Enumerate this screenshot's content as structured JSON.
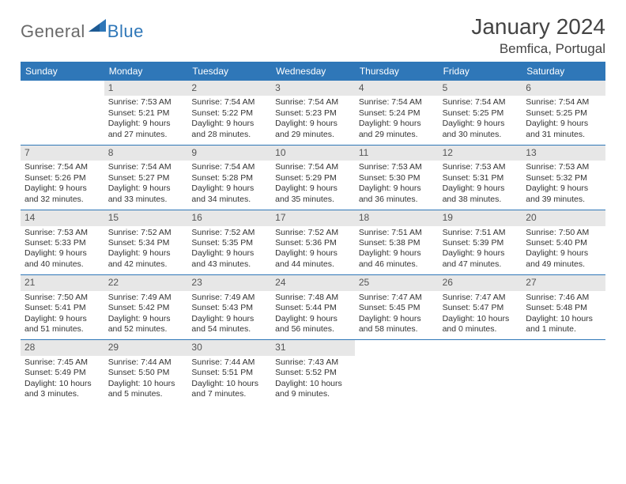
{
  "brand": {
    "part1": "General",
    "part2": "Blue"
  },
  "header": {
    "month": "January 2024",
    "location": "Bemfica, Portugal"
  },
  "colors": {
    "accent": "#2f77b8",
    "daynum_bg": "#e7e7e7",
    "text": "#333333",
    "logo_gray": "#6a6a6a"
  },
  "weekdays": [
    "Sunday",
    "Monday",
    "Tuesday",
    "Wednesday",
    "Thursday",
    "Friday",
    "Saturday"
  ],
  "first_weekday_index": 1,
  "days": [
    {
      "n": 1,
      "sr": "7:53 AM",
      "ss": "5:21 PM",
      "dl": "9 hours and 27 minutes."
    },
    {
      "n": 2,
      "sr": "7:54 AM",
      "ss": "5:22 PM",
      "dl": "9 hours and 28 minutes."
    },
    {
      "n": 3,
      "sr": "7:54 AM",
      "ss": "5:23 PM",
      "dl": "9 hours and 29 minutes."
    },
    {
      "n": 4,
      "sr": "7:54 AM",
      "ss": "5:24 PM",
      "dl": "9 hours and 29 minutes."
    },
    {
      "n": 5,
      "sr": "7:54 AM",
      "ss": "5:25 PM",
      "dl": "9 hours and 30 minutes."
    },
    {
      "n": 6,
      "sr": "7:54 AM",
      "ss": "5:25 PM",
      "dl": "9 hours and 31 minutes."
    },
    {
      "n": 7,
      "sr": "7:54 AM",
      "ss": "5:26 PM",
      "dl": "9 hours and 32 minutes."
    },
    {
      "n": 8,
      "sr": "7:54 AM",
      "ss": "5:27 PM",
      "dl": "9 hours and 33 minutes."
    },
    {
      "n": 9,
      "sr": "7:54 AM",
      "ss": "5:28 PM",
      "dl": "9 hours and 34 minutes."
    },
    {
      "n": 10,
      "sr": "7:54 AM",
      "ss": "5:29 PM",
      "dl": "9 hours and 35 minutes."
    },
    {
      "n": 11,
      "sr": "7:53 AM",
      "ss": "5:30 PM",
      "dl": "9 hours and 36 minutes."
    },
    {
      "n": 12,
      "sr": "7:53 AM",
      "ss": "5:31 PM",
      "dl": "9 hours and 38 minutes."
    },
    {
      "n": 13,
      "sr": "7:53 AM",
      "ss": "5:32 PM",
      "dl": "9 hours and 39 minutes."
    },
    {
      "n": 14,
      "sr": "7:53 AM",
      "ss": "5:33 PM",
      "dl": "9 hours and 40 minutes."
    },
    {
      "n": 15,
      "sr": "7:52 AM",
      "ss": "5:34 PM",
      "dl": "9 hours and 42 minutes."
    },
    {
      "n": 16,
      "sr": "7:52 AM",
      "ss": "5:35 PM",
      "dl": "9 hours and 43 minutes."
    },
    {
      "n": 17,
      "sr": "7:52 AM",
      "ss": "5:36 PM",
      "dl": "9 hours and 44 minutes."
    },
    {
      "n": 18,
      "sr": "7:51 AM",
      "ss": "5:38 PM",
      "dl": "9 hours and 46 minutes."
    },
    {
      "n": 19,
      "sr": "7:51 AM",
      "ss": "5:39 PM",
      "dl": "9 hours and 47 minutes."
    },
    {
      "n": 20,
      "sr": "7:50 AM",
      "ss": "5:40 PM",
      "dl": "9 hours and 49 minutes."
    },
    {
      "n": 21,
      "sr": "7:50 AM",
      "ss": "5:41 PM",
      "dl": "9 hours and 51 minutes."
    },
    {
      "n": 22,
      "sr": "7:49 AM",
      "ss": "5:42 PM",
      "dl": "9 hours and 52 minutes."
    },
    {
      "n": 23,
      "sr": "7:49 AM",
      "ss": "5:43 PM",
      "dl": "9 hours and 54 minutes."
    },
    {
      "n": 24,
      "sr": "7:48 AM",
      "ss": "5:44 PM",
      "dl": "9 hours and 56 minutes."
    },
    {
      "n": 25,
      "sr": "7:47 AM",
      "ss": "5:45 PM",
      "dl": "9 hours and 58 minutes."
    },
    {
      "n": 26,
      "sr": "7:47 AM",
      "ss": "5:47 PM",
      "dl": "10 hours and 0 minutes."
    },
    {
      "n": 27,
      "sr": "7:46 AM",
      "ss": "5:48 PM",
      "dl": "10 hours and 1 minute."
    },
    {
      "n": 28,
      "sr": "7:45 AM",
      "ss": "5:49 PM",
      "dl": "10 hours and 3 minutes."
    },
    {
      "n": 29,
      "sr": "7:44 AM",
      "ss": "5:50 PM",
      "dl": "10 hours and 5 minutes."
    },
    {
      "n": 30,
      "sr": "7:44 AM",
      "ss": "5:51 PM",
      "dl": "10 hours and 7 minutes."
    },
    {
      "n": 31,
      "sr": "7:43 AM",
      "ss": "5:52 PM",
      "dl": "10 hours and 9 minutes."
    }
  ],
  "labels": {
    "sunrise": "Sunrise:",
    "sunset": "Sunset:",
    "daylight": "Daylight:"
  }
}
